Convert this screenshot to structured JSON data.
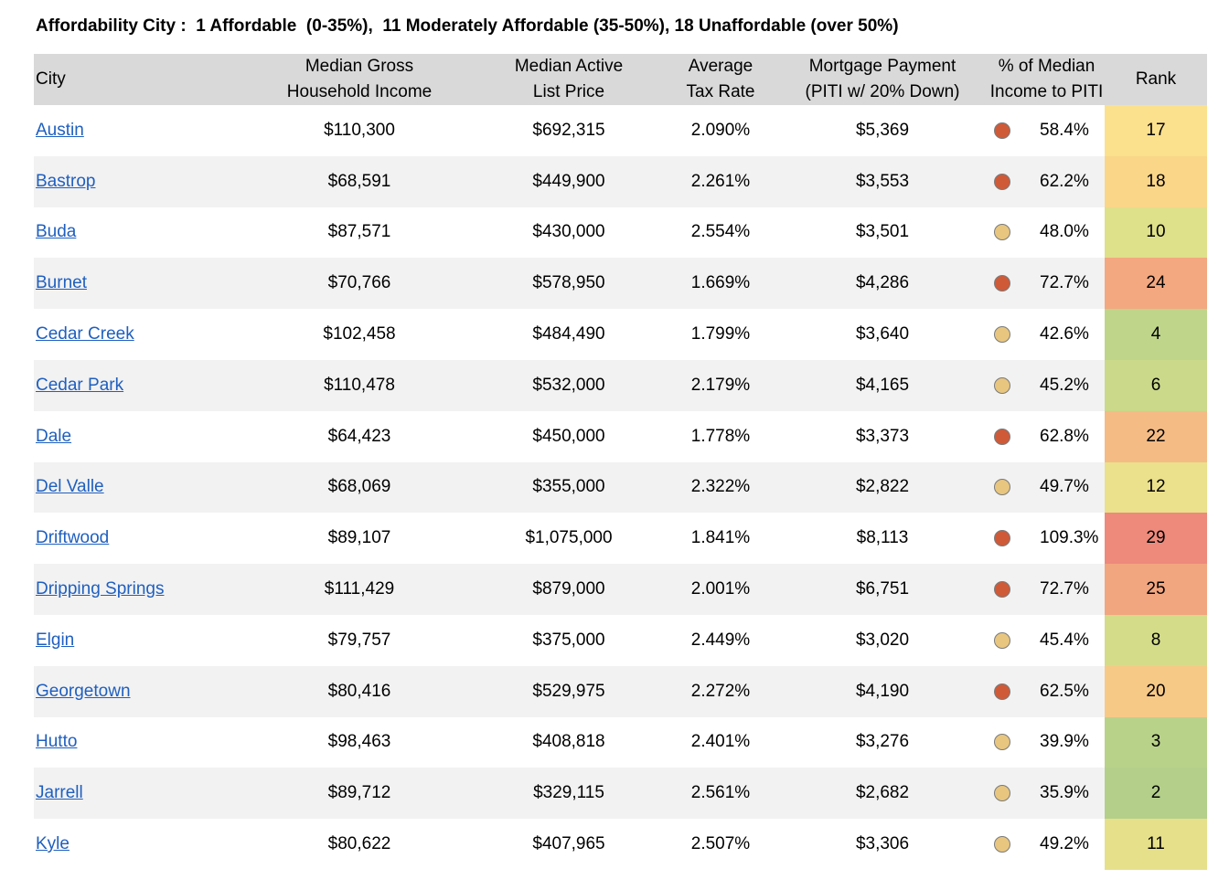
{
  "title": "Affordability City :  1 Affordable  (0-35%),  11 Moderately Affordable (35-50%), 18 Unaffordable (over 50%)",
  "headers": {
    "city": "City",
    "income": [
      "Median Gross",
      "Household Income"
    ],
    "list_price": [
      "Median Active",
      "List Price"
    ],
    "tax_rate": [
      "Average",
      "Tax Rate"
    ],
    "mortgage": [
      "Mortgage Payment",
      "(PITI w/ 20% Down)"
    ],
    "pct": [
      "% of Median",
      "Income to PITI"
    ],
    "rank": "Rank"
  },
  "colors": {
    "dot_unaffordable": "#cf5a38",
    "dot_moderate": "#e8c67f",
    "header_bg": "#d9d9d9",
    "link": "#1f5fbf"
  },
  "rows": [
    {
      "city": "Austin",
      "income": "$110,300",
      "list_price": "$692,315",
      "tax_rate": "2.090%",
      "mortgage": "$5,369",
      "pct": "58.4%",
      "status": "unaffordable",
      "rank": "17",
      "rank_color": "#fbe08e"
    },
    {
      "city": "Bastrop",
      "income": "$68,591",
      "list_price": "$449,900",
      "tax_rate": "2.261%",
      "mortgage": "$3,553",
      "pct": "62.2%",
      "status": "unaffordable",
      "rank": "18",
      "rank_color": "#fad689"
    },
    {
      "city": "Buda",
      "income": "$87,571",
      "list_price": "$430,000",
      "tax_rate": "2.554%",
      "mortgage": "$3,501",
      "pct": "48.0%",
      "status": "moderate",
      "rank": "10",
      "rank_color": "#dfe08a"
    },
    {
      "city": "Burnet",
      "income": "$70,766",
      "list_price": "$578,950",
      "tax_rate": "1.669%",
      "mortgage": "$4,286",
      "pct": "72.7%",
      "status": "unaffordable",
      "rank": "24",
      "rank_color": "#f3a880"
    },
    {
      "city": "Cedar Creek",
      "income": "$102,458",
      "list_price": "$484,490",
      "tax_rate": "1.799%",
      "mortgage": "$3,640",
      "pct": "42.6%",
      "status": "moderate",
      "rank": "4",
      "rank_color": "#bfd58a"
    },
    {
      "city": "Cedar Park",
      "income": "$110,478",
      "list_price": "$532,000",
      "tax_rate": "2.179%",
      "mortgage": "$4,165",
      "pct": "45.2%",
      "status": "moderate",
      "rank": "6",
      "rank_color": "#cad98a"
    },
    {
      "city": "Dale",
      "income": "$64,423",
      "list_price": "$450,000",
      "tax_rate": "1.778%",
      "mortgage": "$3,373",
      "pct": "62.8%",
      "status": "unaffordable",
      "rank": "22",
      "rank_color": "#f4bb85"
    },
    {
      "city": "Del Valle",
      "income": "$68,069",
      "list_price": "$355,000",
      "tax_rate": "2.322%",
      "mortgage": "$2,822",
      "pct": "49.7%",
      "status": "moderate",
      "rank": "12",
      "rank_color": "#ebe08b"
    },
    {
      "city": "Driftwood",
      "income": "$89,107",
      "list_price": "$1,075,000",
      "tax_rate": "1.841%",
      "mortgage": "$8,113",
      "pct": "109.3%",
      "status": "unaffordable",
      "rank": "29",
      "rank_color": "#ed8a7c"
    },
    {
      "city": "Dripping Springs",
      "income": "$111,429",
      "list_price": "$879,000",
      "tax_rate": "2.001%",
      "mortgage": "$6,751",
      "pct": "72.7%",
      "status": "unaffordable",
      "rank": "25",
      "rank_color": "#f2a67f"
    },
    {
      "city": "Elgin",
      "income": "$79,757",
      "list_price": "$375,000",
      "tax_rate": "2.449%",
      "mortgage": "$3,020",
      "pct": "45.4%",
      "status": "moderate",
      "rank": "8",
      "rank_color": "#d4dc8a"
    },
    {
      "city": "Georgetown",
      "income": "$80,416",
      "list_price": "$529,975",
      "tax_rate": "2.272%",
      "mortgage": "$4,190",
      "pct": "62.5%",
      "status": "unaffordable",
      "rank": "20",
      "rank_color": "#f7c987"
    },
    {
      "city": "Hutto",
      "income": "$98,463",
      "list_price": "$408,818",
      "tax_rate": "2.401%",
      "mortgage": "$3,276",
      "pct": "39.9%",
      "status": "moderate",
      "rank": "3",
      "rank_color": "#b9d28a"
    },
    {
      "city": "Jarrell",
      "income": "$89,712",
      "list_price": "$329,115",
      "tax_rate": "2.561%",
      "mortgage": "$2,682",
      "pct": "35.9%",
      "status": "moderate",
      "rank": "2",
      "rank_color": "#b3cf8a"
    },
    {
      "city": "Kyle",
      "income": "$80,622",
      "list_price": "$407,965",
      "tax_rate": "2.507%",
      "mortgage": "$3,306",
      "pct": "49.2%",
      "status": "moderate",
      "rank": "11",
      "rank_color": "#e6e08b"
    }
  ]
}
